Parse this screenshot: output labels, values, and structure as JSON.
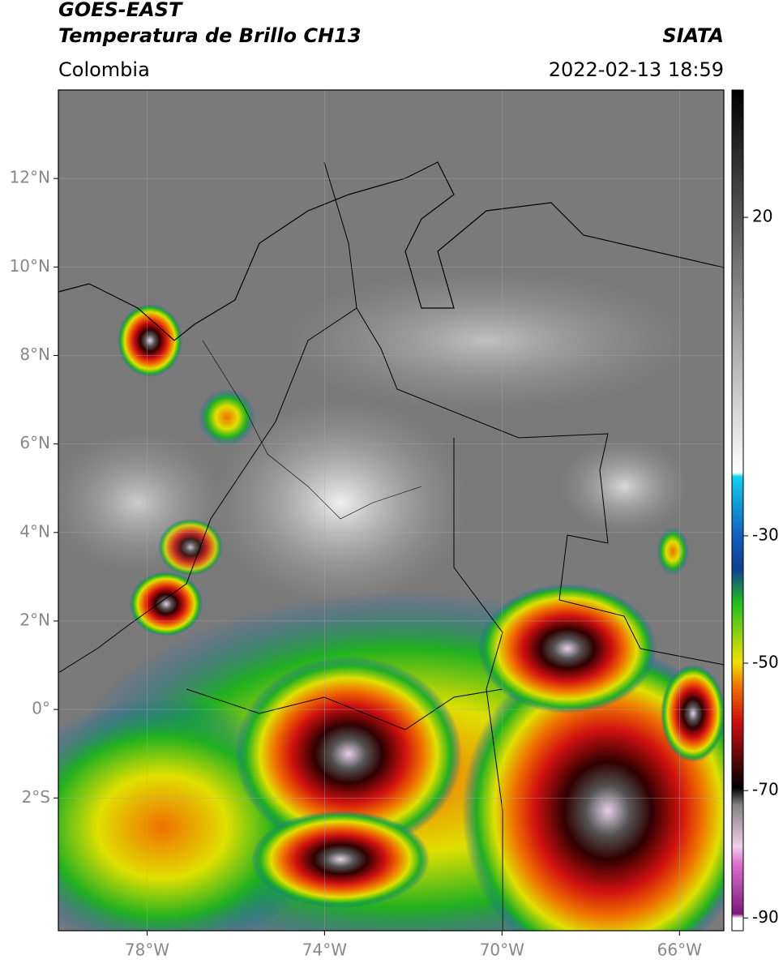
{
  "header": {
    "title": "GOES-EAST",
    "subtitle": "Temperatura de Brillo CH13",
    "source": "SIATA",
    "region": "Colombia",
    "datetime": "2022-02-13 18:59"
  },
  "map": {
    "xlim": [
      -80,
      -65
    ],
    "ylim": [
      -5,
      14
    ],
    "xticks": [
      {
        "value": -78,
        "label": "78°W"
      },
      {
        "value": -74,
        "label": "74°W"
      },
      {
        "value": -70,
        "label": "70°W"
      },
      {
        "value": -66,
        "label": "66°W"
      }
    ],
    "yticks": [
      {
        "value": 12,
        "label": "12°N"
      },
      {
        "value": 10,
        "label": "10°N"
      },
      {
        "value": 8,
        "label": "8°N"
      },
      {
        "value": 6,
        "label": "6°N"
      },
      {
        "value": 4,
        "label": "4°N"
      },
      {
        "value": 2,
        "label": "2°N"
      },
      {
        "value": 0,
        "label": "0°"
      },
      {
        "value": -2,
        "label": "2°S"
      }
    ],
    "grid": true
  },
  "colorbar": {
    "lim": [
      -92,
      40
    ],
    "ticks": [
      20,
      -30,
      -50,
      -70,
      -90
    ]
  }
}
